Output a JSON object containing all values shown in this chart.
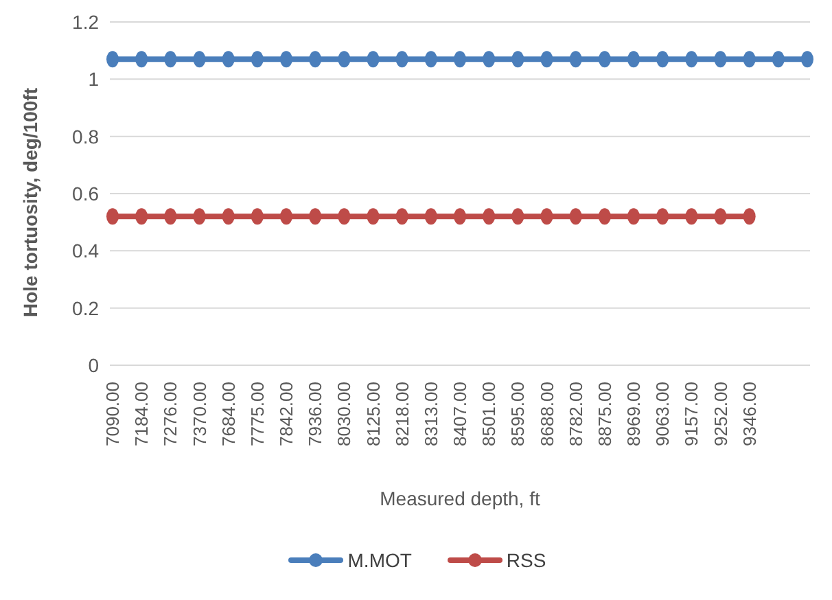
{
  "chart_data": {
    "type": "line",
    "xlabel": "Measured depth, ft",
    "ylabel": "Hole tortuosity, deg/100ft",
    "categories": [
      "7090.00",
      "7184.00",
      "7276.00",
      "7370.00",
      "7684.00",
      "7775.00",
      "7842.00",
      "7936.00",
      "8030.00",
      "8125.00",
      "8218.00",
      "8313.00",
      "8407.00",
      "8501.00",
      "8595.00",
      "8688.00",
      "8782.00",
      "8875.00",
      "8969.00",
      "9063.00",
      "9157.00",
      "9252.00",
      "9346.00",
      null,
      null
    ],
    "series": [
      {
        "name": "M.MOT",
        "color": "#4a7ebb",
        "values": [
          1.07,
          1.07,
          1.07,
          1.07,
          1.07,
          1.07,
          1.07,
          1.07,
          1.07,
          1.07,
          1.07,
          1.07,
          1.07,
          1.07,
          1.07,
          1.07,
          1.07,
          1.07,
          1.07,
          1.07,
          1.07,
          1.07,
          1.07,
          1.07,
          1.07
        ]
      },
      {
        "name": "RSS",
        "color": "#be4b48",
        "values": [
          0.52,
          0.52,
          0.52,
          0.52,
          0.52,
          0.52,
          0.52,
          0.52,
          0.52,
          0.52,
          0.52,
          0.52,
          0.52,
          0.52,
          0.52,
          0.52,
          0.52,
          0.52,
          0.52,
          0.52,
          0.52,
          0.52,
          0.52,
          null,
          null
        ]
      }
    ],
    "ylim": [
      0,
      1.2
    ],
    "yticks": [
      0,
      0.2,
      0.4,
      0.6,
      0.8,
      1,
      1.2
    ],
    "grid": "y",
    "legend": "bottom",
    "marker": "circle",
    "line_style": "solid"
  }
}
